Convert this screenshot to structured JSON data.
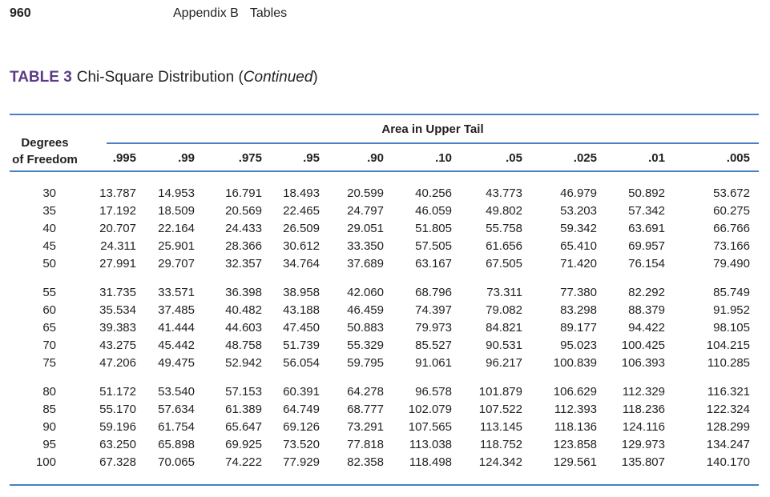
{
  "header": {
    "page_number": "960",
    "running_head_section": "Appendix B",
    "running_head_title": "Tables"
  },
  "table": {
    "label": "TABLE 3",
    "title": "Chi-Square Distribution",
    "title_suffix_open": "(",
    "title_italic": "Continued",
    "title_suffix_close": ")",
    "row_header": [
      "Degrees",
      "of Freedom"
    ],
    "column_group_header": "Area in Upper Tail",
    "columns": [
      ".995",
      ".99",
      ".975",
      ".95",
      ".90",
      ".10",
      ".05",
      ".025",
      ".01",
      ".005"
    ],
    "row_groups": [
      [
        {
          "df": "30",
          "values": [
            "13.787",
            "14.953",
            "16.791",
            "18.493",
            "20.599",
            "40.256",
            "43.773",
            "46.979",
            "50.892",
            "53.672"
          ]
        },
        {
          "df": "35",
          "values": [
            "17.192",
            "18.509",
            "20.569",
            "22.465",
            "24.797",
            "46.059",
            "49.802",
            "53.203",
            "57.342",
            "60.275"
          ]
        },
        {
          "df": "40",
          "values": [
            "20.707",
            "22.164",
            "24.433",
            "26.509",
            "29.051",
            "51.805",
            "55.758",
            "59.342",
            "63.691",
            "66.766"
          ]
        },
        {
          "df": "45",
          "values": [
            "24.311",
            "25.901",
            "28.366",
            "30.612",
            "33.350",
            "57.505",
            "61.656",
            "65.410",
            "69.957",
            "73.166"
          ]
        },
        {
          "df": "50",
          "values": [
            "27.991",
            "29.707",
            "32.357",
            "34.764",
            "37.689",
            "63.167",
            "67.505",
            "71.420",
            "76.154",
            "79.490"
          ]
        }
      ],
      [
        {
          "df": "55",
          "values": [
            "31.735",
            "33.571",
            "36.398",
            "38.958",
            "42.060",
            "68.796",
            "73.311",
            "77.380",
            "82.292",
            "85.749"
          ]
        },
        {
          "df": "60",
          "values": [
            "35.534",
            "37.485",
            "40.482",
            "43.188",
            "46.459",
            "74.397",
            "79.082",
            "83.298",
            "88.379",
            "91.952"
          ]
        },
        {
          "df": "65",
          "values": [
            "39.383",
            "41.444",
            "44.603",
            "47.450",
            "50.883",
            "79.973",
            "84.821",
            "89.177",
            "94.422",
            "98.105"
          ]
        },
        {
          "df": "70",
          "values": [
            "43.275",
            "45.442",
            "48.758",
            "51.739",
            "55.329",
            "85.527",
            "90.531",
            "95.023",
            "100.425",
            "104.215"
          ]
        },
        {
          "df": "75",
          "values": [
            "47.206",
            "49.475",
            "52.942",
            "56.054",
            "59.795",
            "91.061",
            "96.217",
            "100.839",
            "106.393",
            "110.285"
          ]
        }
      ],
      [
        {
          "df": "80",
          "values": [
            "51.172",
            "53.540",
            "57.153",
            "60.391",
            "64.278",
            "96.578",
            "101.879",
            "106.629",
            "112.329",
            "116.321"
          ]
        },
        {
          "df": "85",
          "values": [
            "55.170",
            "57.634",
            "61.389",
            "64.749",
            "68.777",
            "102.079",
            "107.522",
            "112.393",
            "118.236",
            "122.324"
          ]
        },
        {
          "df": "90",
          "values": [
            "59.196",
            "61.754",
            "65.647",
            "69.126",
            "73.291",
            "107.565",
            "113.145",
            "118.136",
            "124.116",
            "128.299"
          ]
        },
        {
          "df": "95",
          "values": [
            "63.250",
            "65.898",
            "69.925",
            "73.520",
            "77.818",
            "113.038",
            "118.752",
            "123.858",
            "129.973",
            "134.247"
          ]
        },
        {
          "df": "100",
          "values": [
            "67.328",
            "70.065",
            "74.222",
            "77.929",
            "82.358",
            "118.498",
            "124.342",
            "129.561",
            "135.807",
            "140.170"
          ]
        }
      ]
    ]
  },
  "colors": {
    "rule": "#4a7fc1",
    "label": "#5b3a86",
    "text": "#231f20"
  }
}
